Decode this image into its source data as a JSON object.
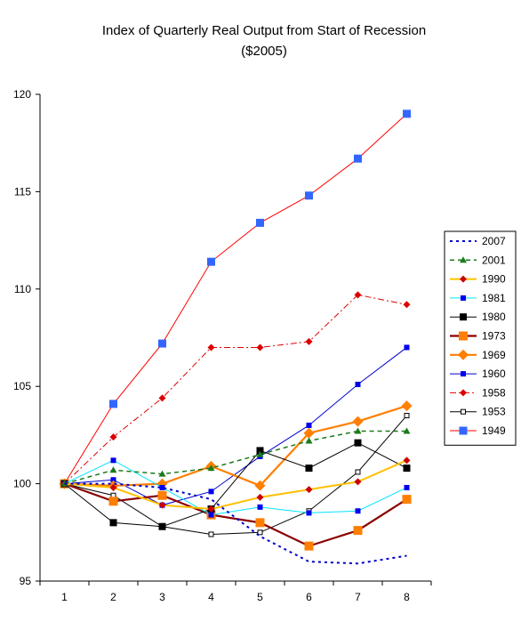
{
  "chart_data": {
    "type": "line",
    "title": "Index of Quarterly Real Output from Start of Recession",
    "subtitle": "($2005)",
    "xlabel": "",
    "ylabel": "",
    "x": [
      1,
      2,
      3,
      4,
      5,
      6,
      7,
      8
    ],
    "ylim": [
      95,
      120
    ],
    "yticks": [
      95,
      100,
      105,
      110,
      115,
      120
    ],
    "grid": false,
    "legend_position": "right",
    "series": [
      {
        "name": "2007",
        "color": "#0000cc",
        "dash": "dotted",
        "marker": "none",
        "values": [
          100,
          100.0,
          99.8,
          99.2,
          97.3,
          96.0,
          95.9,
          96.3
        ]
      },
      {
        "name": "2001",
        "color": "#1a7a1a",
        "dash": "dashed",
        "marker": "triangle",
        "values": [
          100,
          100.7,
          100.5,
          100.8,
          101.5,
          102.2,
          102.7,
          102.7
        ]
      },
      {
        "name": "1990",
        "color": "#ffc000",
        "dash": "solid",
        "marker": "diamond-small",
        "values": [
          100,
          99.8,
          98.9,
          98.7,
          99.3,
          99.7,
          100.1,
          101.2
        ]
      },
      {
        "name": "1981",
        "color": "#00e5ff",
        "dash": "solid",
        "marker": "square-small-blue",
        "values": [
          100,
          101.2,
          99.8,
          98.4,
          98.8,
          98.5,
          98.6,
          99.8
        ]
      },
      {
        "name": "1980",
        "color": "#000000",
        "dash": "solid",
        "marker": "square-black",
        "values": [
          100,
          98.0,
          97.8,
          98.7,
          101.7,
          100.8,
          102.1,
          100.8
        ]
      },
      {
        "name": "1973",
        "color": "#8b0000",
        "dash": "solid",
        "marker": "square-orange",
        "values": [
          100,
          99.1,
          99.4,
          98.4,
          98.0,
          96.8,
          97.6,
          99.2
        ]
      },
      {
        "name": "1969",
        "color": "#ff7f00",
        "dash": "solid",
        "marker": "diamond-orange",
        "values": [
          100,
          99.9,
          100.0,
          100.9,
          99.9,
          102.6,
          103.2,
          104.0
        ]
      },
      {
        "name": "1960",
        "color": "#0000cc",
        "dash": "solid",
        "marker": "square-small-blue",
        "values": [
          100,
          100.2,
          98.9,
          99.6,
          101.4,
          103.0,
          105.1,
          107.0
        ]
      },
      {
        "name": "1958",
        "color": "#dd0000",
        "dash": "dashdot",
        "marker": "diamond-red",
        "values": [
          100,
          102.4,
          104.4,
          107.0,
          107.0,
          107.3,
          109.7,
          109.2
        ]
      },
      {
        "name": "1953",
        "color": "#000000",
        "dash": "solid",
        "marker": "square-open",
        "values": [
          100,
          99.4,
          97.8,
          97.4,
          97.5,
          98.6,
          100.6,
          103.5
        ]
      },
      {
        "name": "1949",
        "color": "#ff0000",
        "dash": "solid",
        "marker": "square-blue-large",
        "values": [
          100,
          104.1,
          107.2,
          111.4,
          113.4,
          114.8,
          116.7,
          119.0
        ]
      }
    ]
  }
}
